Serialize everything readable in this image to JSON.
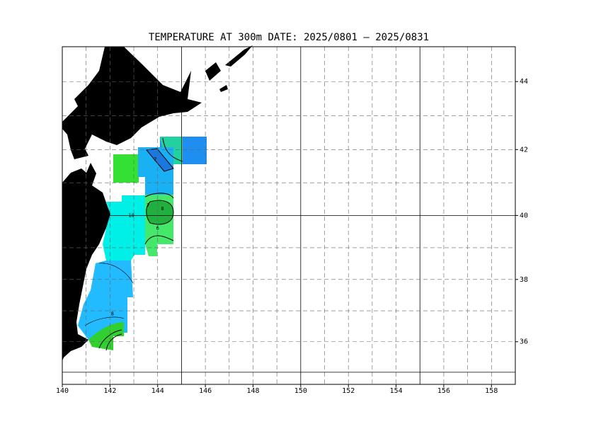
{
  "title": "TEMPERATURE AT 300m  DATE:  2025/0801 –  2025/0831",
  "map": {
    "xlim": [
      140,
      159
    ],
    "ylim": [
      34.6,
      45
    ],
    "xticks": [
      140,
      142,
      144,
      146,
      148,
      150,
      152,
      154,
      156,
      158
    ],
    "yticks": [
      36,
      38,
      40,
      42,
      44
    ],
    "major_step": 5,
    "contour_labels": [
      {
        "text": "7",
        "lon": 143.9,
        "lat": 41.7
      },
      {
        "text": "10",
        "lon": 142.9,
        "lat": 40.0
      },
      {
        "text": "7",
        "lon": 143.6,
        "lat": 40.3
      },
      {
        "text": "8",
        "lon": 144.2,
        "lat": 40.2
      },
      {
        "text": "6",
        "lon": 144.0,
        "lat": 39.6
      },
      {
        "text": "8",
        "lon": 142.1,
        "lat": 36.9
      }
    ]
  }
}
